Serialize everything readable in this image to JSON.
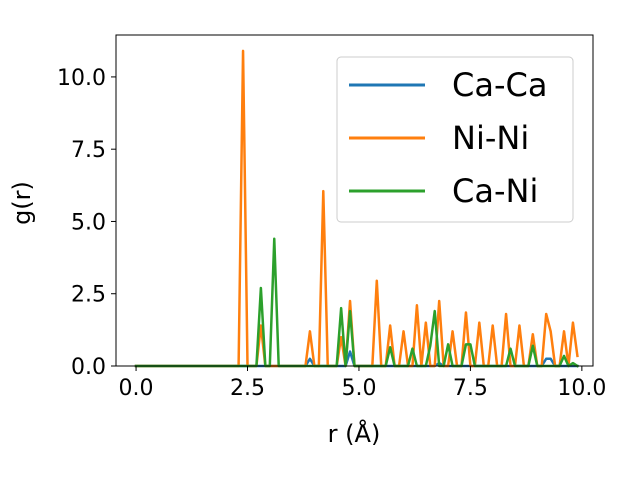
{
  "chart_data": {
    "type": "line",
    "title": "",
    "xlabel": "r (Å)",
    "ylabel": "g(r)",
    "xlim": [
      -0.45,
      10.25
    ],
    "ylim": [
      0,
      11.45
    ],
    "xticks": [
      0.0,
      2.5,
      5.0,
      7.5,
      10.0
    ],
    "xtick_labels": [
      "0.0",
      "2.5",
      "5.0",
      "7.5",
      "10.0"
    ],
    "yticks": [
      0.0,
      2.5,
      5.0,
      7.5,
      10.0
    ],
    "ytick_labels": [
      "0.0",
      "2.5",
      "5.0",
      "7.5",
      "10.0"
    ],
    "grid": false,
    "legend_position": "top-right",
    "series": [
      {
        "name": "Ca-Ca",
        "color": "#1f77b4",
        "points": [
          [
            0.0,
            0
          ],
          [
            3.8,
            0
          ],
          [
            3.9,
            0.25
          ],
          [
            4.0,
            0
          ],
          [
            4.7,
            0
          ],
          [
            4.8,
            0.5
          ],
          [
            4.9,
            0
          ],
          [
            6.7,
            0
          ],
          [
            6.8,
            0.1
          ],
          [
            6.9,
            0
          ],
          [
            9.1,
            0
          ],
          [
            9.2,
            0.25
          ],
          [
            9.3,
            0.25
          ],
          [
            9.4,
            0
          ],
          [
            9.9,
            0
          ]
        ]
      },
      {
        "name": "Ni-Ni",
        "color": "#ff7f0e",
        "points": [
          [
            0.0,
            0
          ],
          [
            2.3,
            0
          ],
          [
            2.4,
            10.9
          ],
          [
            2.5,
            0
          ],
          [
            2.7,
            0
          ],
          [
            2.8,
            1.4
          ],
          [
            2.9,
            0
          ],
          [
            3.8,
            0
          ],
          [
            3.9,
            1.2
          ],
          [
            4.0,
            0
          ],
          [
            4.1,
            0
          ],
          [
            4.2,
            6.05
          ],
          [
            4.3,
            0
          ],
          [
            4.5,
            0
          ],
          [
            4.6,
            1.0
          ],
          [
            4.7,
            0
          ],
          [
            4.8,
            2.25
          ],
          [
            4.9,
            0
          ],
          [
            5.3,
            0
          ],
          [
            5.4,
            2.95
          ],
          [
            5.5,
            0
          ],
          [
            5.6,
            0
          ],
          [
            5.7,
            1.4
          ],
          [
            5.8,
            0
          ],
          [
            5.9,
            0
          ],
          [
            6.0,
            1.2
          ],
          [
            6.1,
            0
          ],
          [
            6.2,
            0
          ],
          [
            6.3,
            2.1
          ],
          [
            6.4,
            0
          ],
          [
            6.5,
            1.5
          ],
          [
            6.6,
            0
          ],
          [
            6.7,
            0
          ],
          [
            6.8,
            2.25
          ],
          [
            6.9,
            0
          ],
          [
            7.0,
            0
          ],
          [
            7.1,
            1.2
          ],
          [
            7.2,
            0
          ],
          [
            7.3,
            0
          ],
          [
            7.4,
            1.85
          ],
          [
            7.5,
            0
          ],
          [
            7.6,
            0
          ],
          [
            7.7,
            1.5
          ],
          [
            7.8,
            0
          ],
          [
            7.9,
            0
          ],
          [
            8.0,
            1.4
          ],
          [
            8.1,
            0
          ],
          [
            8.2,
            0
          ],
          [
            8.3,
            1.8
          ],
          [
            8.4,
            0
          ],
          [
            8.5,
            0
          ],
          [
            8.6,
            1.4
          ],
          [
            8.7,
            0
          ],
          [
            8.8,
            0
          ],
          [
            8.9,
            1.1
          ],
          [
            9.0,
            0
          ],
          [
            9.1,
            0
          ],
          [
            9.2,
            1.8
          ],
          [
            9.3,
            1.2
          ],
          [
            9.4,
            0
          ],
          [
            9.5,
            0
          ],
          [
            9.6,
            1.2
          ],
          [
            9.7,
            0
          ],
          [
            9.8,
            1.5
          ],
          [
            9.9,
            0.35
          ]
        ]
      },
      {
        "name": "Ca-Ni",
        "color": "#2ca02c",
        "points": [
          [
            0.0,
            0
          ],
          [
            2.7,
            0
          ],
          [
            2.8,
            2.7
          ],
          [
            2.9,
            0
          ],
          [
            3.0,
            0
          ],
          [
            3.1,
            4.4
          ],
          [
            3.2,
            0
          ],
          [
            4.5,
            0
          ],
          [
            4.6,
            2.0
          ],
          [
            4.7,
            0
          ],
          [
            4.8,
            1.9
          ],
          [
            4.9,
            0
          ],
          [
            5.6,
            0
          ],
          [
            5.7,
            0.65
          ],
          [
            5.8,
            0
          ],
          [
            6.1,
            0
          ],
          [
            6.2,
            0.6
          ],
          [
            6.3,
            0
          ],
          [
            6.5,
            0
          ],
          [
            6.6,
            0.7
          ],
          [
            6.7,
            1.9
          ],
          [
            6.8,
            0
          ],
          [
            6.9,
            0
          ],
          [
            7.0,
            0.75
          ],
          [
            7.1,
            0
          ],
          [
            7.3,
            0
          ],
          [
            7.4,
            0.75
          ],
          [
            7.5,
            0.75
          ],
          [
            7.6,
            0
          ],
          [
            8.3,
            0
          ],
          [
            8.4,
            0.6
          ],
          [
            8.5,
            0
          ],
          [
            8.8,
            0
          ],
          [
            8.9,
            0.7
          ],
          [
            9.0,
            0
          ],
          [
            9.5,
            0
          ],
          [
            9.6,
            0.35
          ],
          [
            9.7,
            0
          ],
          [
            9.8,
            0.1
          ],
          [
            9.9,
            0
          ]
        ]
      }
    ]
  }
}
